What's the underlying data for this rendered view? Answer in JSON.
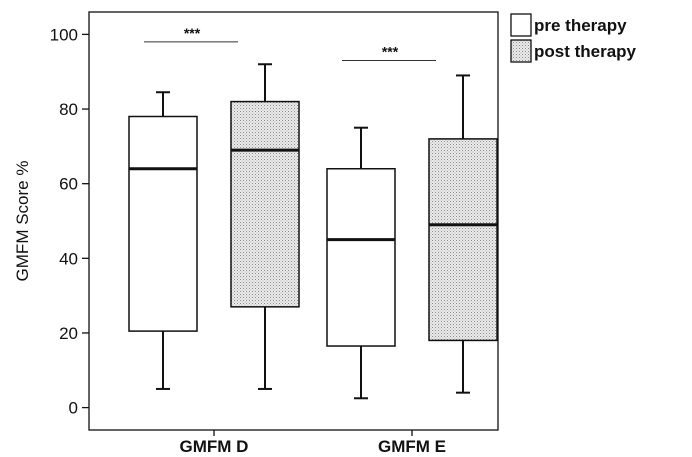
{
  "chart_data": {
    "type": "box",
    "title": "",
    "xlabel": "",
    "ylabel": "GMFM Score %",
    "ylim": [
      -6,
      106
    ],
    "yticks": [
      0,
      20,
      40,
      60,
      80,
      100
    ],
    "ytick_labels": [
      "0",
      "20",
      "40",
      "60",
      "80",
      "100"
    ],
    "categories": [
      "GMFM D",
      "GMFM E"
    ],
    "grid": false,
    "legend_position": "outside-top-right",
    "series": [
      {
        "name": "pre therapy",
        "pattern": "plain",
        "fill": "#ffffff",
        "boxes": [
          {
            "whisker_low": 5,
            "q1": 20.5,
            "median": 64,
            "q3": 78,
            "whisker_high": 84.5
          },
          {
            "whisker_low": 2.5,
            "q1": 16.5,
            "median": 45,
            "q3": 64,
            "whisker_high": 75
          }
        ]
      },
      {
        "name": "post therapy",
        "pattern": "dotted",
        "fill": "#e3e3e3",
        "boxes": [
          {
            "whisker_low": 5,
            "q1": 27,
            "median": 69,
            "q3": 82,
            "whisker_high": 92
          },
          {
            "whisker_low": 4,
            "q1": 18,
            "median": 49,
            "q3": 72,
            "whisker_high": 89
          }
        ]
      }
    ],
    "annotations": [
      {
        "text": "***",
        "category": "GMFM D",
        "y": 98
      },
      {
        "text": "***",
        "category": "GMFM E",
        "y": 93
      }
    ]
  }
}
